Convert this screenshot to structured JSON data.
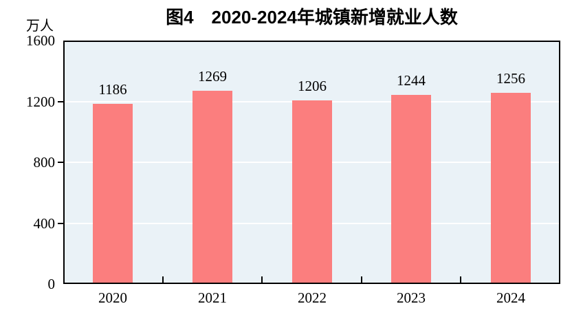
{
  "figure": {
    "title": "图4　2020-2024年城镇新增就业人数",
    "unit_label": "万人"
  },
  "chart_data": {
    "type": "bar",
    "title": "图4　2020-2024年城镇新增就业人数",
    "categories": [
      "2020",
      "2021",
      "2022",
      "2023",
      "2024"
    ],
    "values": [
      1186,
      1269,
      1206,
      1244,
      1256
    ],
    "xlabel": "",
    "ylabel": "万人",
    "ylim": [
      0,
      1600
    ],
    "yticks": [
      0,
      400,
      800,
      1200,
      1600
    ],
    "grid": true,
    "legend": "none",
    "bar_color": "#FB7E7E",
    "plot_bg": "#EAF2F7",
    "gridline_color": "#FFFFFF",
    "axis_color": "#000000"
  }
}
